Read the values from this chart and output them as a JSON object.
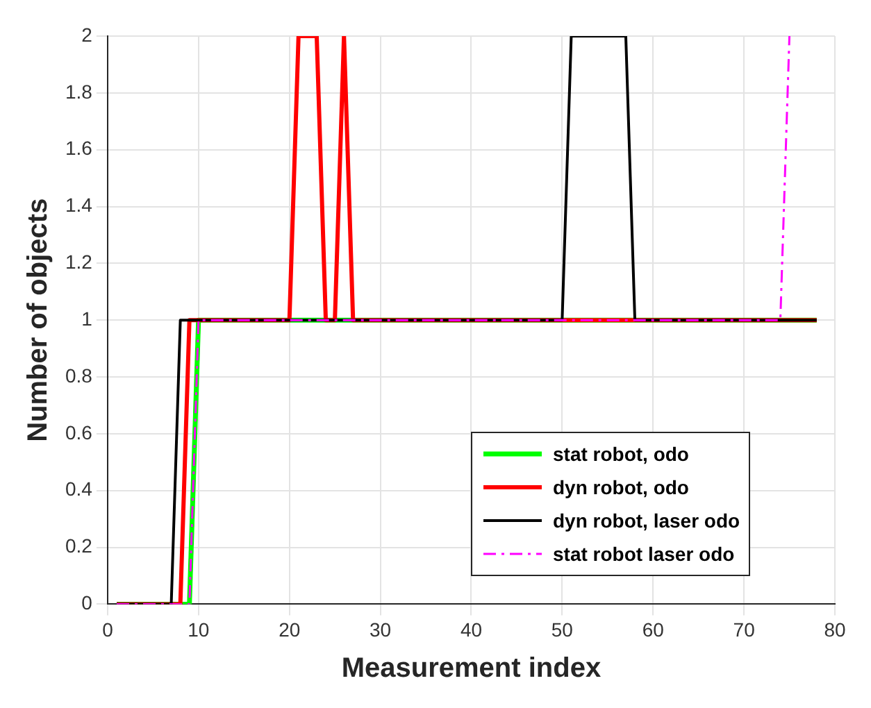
{
  "chart_data": {
    "type": "line",
    "xlabel": "Measurement index",
    "ylabel": "Number of objects",
    "xlim": [
      0,
      80
    ],
    "xticks": [
      0,
      10,
      20,
      30,
      40,
      50,
      60,
      70,
      80
    ],
    "ylim": [
      0,
      2
    ],
    "yticks": [
      0,
      {
        "value": 0.2,
        "label": "0.2"
      },
      {
        "value": 0.4,
        "label": "0.4"
      },
      {
        "value": 0.6,
        "label": "0.6"
      },
      {
        "value": 0.8,
        "label": "0.8"
      },
      1,
      {
        "value": 1.2,
        "label": "1.2"
      },
      {
        "value": 1.4,
        "label": "1.4"
      },
      {
        "value": 1.6,
        "label": "1.6"
      },
      {
        "value": 1.8,
        "label": "1.8"
      },
      2
    ],
    "grid": true,
    "legend": "bottom right",
    "marker": "none",
    "series": [
      {
        "name": "stat robot, odo",
        "color": "#00ff00",
        "line_style": "solid",
        "x": [
          1,
          9,
          10,
          78
        ],
        "values": [
          0,
          0,
          1,
          1
        ]
      },
      {
        "name": "dyn robot, odo",
        "color": "#ff0000",
        "line_style": "solid",
        "x": [
          1,
          8,
          9,
          20,
          21,
          23,
          24,
          25,
          26,
          27,
          78
        ],
        "values": [
          0,
          0,
          1,
          1,
          2,
          2,
          1,
          1,
          2,
          1,
          1
        ]
      },
      {
        "name": "dyn robot, laser odo",
        "color": "#000000",
        "line_style": "solid",
        "x": [
          1,
          7,
          8,
          50,
          51,
          57,
          58,
          78
        ],
        "values": [
          0,
          0,
          1,
          1,
          2,
          2,
          1,
          1
        ]
      },
      {
        "name": "stat robot laser odo",
        "color": "#ff00ff",
        "line_style": "dashed",
        "x": [
          1,
          9,
          10,
          74,
          75
        ],
        "values": [
          0,
          0,
          1,
          1,
          2
        ]
      }
    ]
  }
}
